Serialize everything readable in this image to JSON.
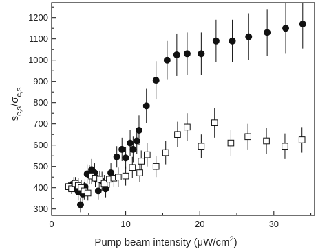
{
  "chart_data": {
    "type": "scatter",
    "xlabel_main": "Pump beam intensity (μW/cm",
    "xlabel_sup": "2",
    "xlabel_tail": ")",
    "ylabel_s": "s",
    "ylabel_s_sub": "c,s",
    "ylabel_slash": "/σ",
    "ylabel_sigma_sub": "c,s",
    "xlim": [
      0,
      35.5
    ],
    "ylim": [
      270,
      1270
    ],
    "x_ticks": [
      0,
      10,
      20,
      30
    ],
    "y_ticks": [
      300,
      400,
      500,
      600,
      700,
      800,
      900,
      1000,
      1100,
      1200
    ],
    "series": [
      {
        "marker": "filled-circle",
        "points": [
          {
            "x": 2.6,
            "y": 410,
            "err": 20
          },
          {
            "x": 3.0,
            "y": 420,
            "err": 30
          },
          {
            "x": 3.3,
            "y": 395,
            "err": 30
          },
          {
            "x": 3.6,
            "y": 380,
            "err": 40
          },
          {
            "x": 3.9,
            "y": 320,
            "err": 35
          },
          {
            "x": 4.2,
            "y": 370,
            "err": 40
          },
          {
            "x": 4.5,
            "y": 405,
            "err": 35
          },
          {
            "x": 4.8,
            "y": 465,
            "err": 45
          },
          {
            "x": 5.1,
            "y": 460,
            "err": 45
          },
          {
            "x": 5.4,
            "y": 485,
            "err": 50
          },
          {
            "x": 5.8,
            "y": 470,
            "err": 45
          },
          {
            "x": 6.3,
            "y": 385,
            "err": 40
          },
          {
            "x": 6.8,
            "y": 430,
            "err": 45
          },
          {
            "x": 7.3,
            "y": 395,
            "err": 40
          },
          {
            "x": 8.0,
            "y": 470,
            "err": 45
          },
          {
            "x": 8.8,
            "y": 545,
            "err": 50
          },
          {
            "x": 9.5,
            "y": 580,
            "err": 55
          },
          {
            "x": 10.0,
            "y": 540,
            "err": 50
          },
          {
            "x": 10.6,
            "y": 610,
            "err": 60
          },
          {
            "x": 11.0,
            "y": 580,
            "err": 60
          },
          {
            "x": 11.5,
            "y": 620,
            "err": 60
          },
          {
            "x": 11.8,
            "y": 670,
            "err": 70
          },
          {
            "x": 12.8,
            "y": 785,
            "err": 80
          },
          {
            "x": 14.1,
            "y": 905,
            "err": 90
          },
          {
            "x": 15.6,
            "y": 1000,
            "err": 90
          },
          {
            "x": 16.9,
            "y": 1025,
            "err": 100
          },
          {
            "x": 18.3,
            "y": 1030,
            "err": 100
          },
          {
            "x": 20.2,
            "y": 1030,
            "err": 100
          },
          {
            "x": 22.2,
            "y": 1090,
            "err": 100
          },
          {
            "x": 24.4,
            "y": 1090,
            "err": 100
          },
          {
            "x": 26.6,
            "y": 1110,
            "err": 110
          },
          {
            "x": 29.1,
            "y": 1130,
            "err": 110
          },
          {
            "x": 31.6,
            "y": 1150,
            "err": 120
          },
          {
            "x": 33.9,
            "y": 1170,
            "err": 115
          }
        ]
      },
      {
        "marker": "open-square",
        "points": [
          {
            "x": 2.3,
            "y": 405,
            "err": 20
          },
          {
            "x": 2.7,
            "y": 395,
            "err": 25
          },
          {
            "x": 3.2,
            "y": 420,
            "err": 30
          },
          {
            "x": 3.6,
            "y": 410,
            "err": 35
          },
          {
            "x": 4.0,
            "y": 400,
            "err": 35
          },
          {
            "x": 4.4,
            "y": 385,
            "err": 40
          },
          {
            "x": 4.9,
            "y": 375,
            "err": 35
          },
          {
            "x": 5.4,
            "y": 455,
            "err": 40
          },
          {
            "x": 5.9,
            "y": 445,
            "err": 40
          },
          {
            "x": 6.5,
            "y": 440,
            "err": 40
          },
          {
            "x": 7.1,
            "y": 420,
            "err": 40
          },
          {
            "x": 7.8,
            "y": 440,
            "err": 40
          },
          {
            "x": 8.4,
            "y": 445,
            "err": 40
          },
          {
            "x": 9.0,
            "y": 450,
            "err": 45
          },
          {
            "x": 10.0,
            "y": 455,
            "err": 45
          },
          {
            "x": 10.9,
            "y": 495,
            "err": 50
          },
          {
            "x": 11.9,
            "y": 470,
            "err": 45
          },
          {
            "x": 12.1,
            "y": 525,
            "err": 50
          },
          {
            "x": 12.9,
            "y": 555,
            "err": 55
          },
          {
            "x": 14.1,
            "y": 500,
            "err": 50
          },
          {
            "x": 15.4,
            "y": 565,
            "err": 55
          },
          {
            "x": 17.0,
            "y": 650,
            "err": 60
          },
          {
            "x": 18.3,
            "y": 685,
            "err": 65
          },
          {
            "x": 20.2,
            "y": 595,
            "err": 55
          },
          {
            "x": 22.0,
            "y": 705,
            "err": 70
          },
          {
            "x": 24.2,
            "y": 610,
            "err": 60
          },
          {
            "x": 26.5,
            "y": 640,
            "err": 60
          },
          {
            "x": 29.0,
            "y": 620,
            "err": 60
          },
          {
            "x": 31.5,
            "y": 595,
            "err": 60
          },
          {
            "x": 33.8,
            "y": 625,
            "err": 60
          }
        ]
      }
    ]
  }
}
